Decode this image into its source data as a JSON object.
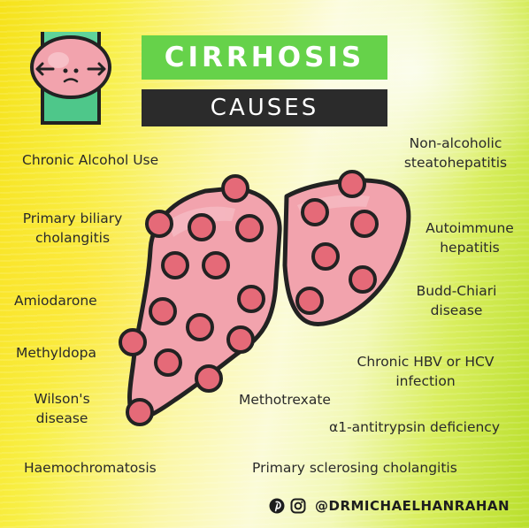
{
  "header": {
    "title": "CIRRHOSIS",
    "subtitle": "CAUSES"
  },
  "causes": {
    "alcohol": "Chronic Alcohol Use",
    "pbc_line1": "Primary biliary",
    "pbc_line2": "cholangitis",
    "amiodarone": "Amiodarone",
    "methyldopa": "Methyldopa",
    "wilsons_line1": "Wilson's",
    "wilsons_line2": "disease",
    "haemochromatosis": "Haemochromatosis",
    "nash_line1": "Non-alcoholic",
    "nash_line2": "steatohepatitis",
    "aih_line1": "Autoimmune",
    "aih_line2": "hepatitis",
    "budd_line1": "Budd-Chiari",
    "budd_line2": "disease",
    "hbv_line1": "Chronic HBV or HCV",
    "hbv_line2": "infection",
    "methotrexate": "Methotrexate",
    "a1at": "α1-antitrypsin deficiency",
    "psc": "Primary sclerosing cholangitis"
  },
  "footer": {
    "handle": "@DRMICHAELHANRAHAN",
    "icons": [
      "pinterest-icon",
      "instagram-icon"
    ]
  },
  "colors": {
    "title_bg": "#66d24a",
    "subtitle_bg": "#2b2b2b",
    "liver_fill": "#f2a3ad",
    "liver_outline": "#222222",
    "nodule": "#e56a78"
  }
}
